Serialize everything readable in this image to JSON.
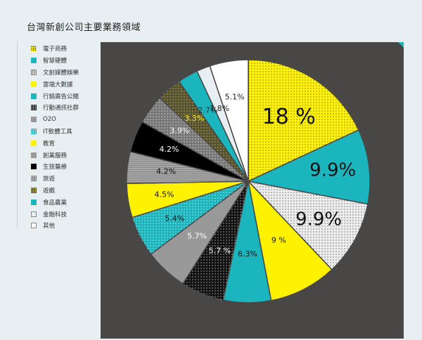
{
  "title": "台灣新創公司主要業務領域",
  "chart_data": {
    "type": "pie",
    "title": "台灣新創公司主要業務領域",
    "legend_position": "left",
    "slices": [
      {
        "name": "電子商務",
        "value": 18,
        "label": "18 %",
        "color": "#fff200",
        "pattern": "dots-dark"
      },
      {
        "name": "智慧硬體",
        "value": 9.9,
        "label": "9.9%",
        "color": "#1bb5bd",
        "pattern": "none"
      },
      {
        "name": "文創媒體娛樂",
        "value": 9.9,
        "label": "9.9%",
        "color": "#ececec",
        "pattern": "dots-dark"
      },
      {
        "name": "雲端大數據",
        "value": 9,
        "label": "9 %",
        "color": "#fff200",
        "pattern": "none"
      },
      {
        "name": "行銷廣告公關",
        "value": 6.3,
        "label": "6.3%",
        "color": "#1bb5bd",
        "pattern": "none"
      },
      {
        "name": "行動通訊社群",
        "value": 5.7,
        "label": "5.7 %",
        "color": "#111111",
        "pattern": "dots-light"
      },
      {
        "name": "O2O",
        "value": 5.7,
        "label": "5.7%",
        "color": "#999999",
        "pattern": "none"
      },
      {
        "name": "IT軟體工具",
        "value": 5.4,
        "label": "5.4%",
        "color": "#1bb5bd",
        "pattern": "dots-light"
      },
      {
        "name": "教育",
        "value": 4.5,
        "label": "4.5%",
        "color": "#fff200",
        "pattern": "none"
      },
      {
        "name": "創業服務",
        "value": 4.2,
        "label": "4.2%",
        "color": "#a5a5a5",
        "pattern": "lines"
      },
      {
        "name": "生技醫療",
        "value": 4.2,
        "label": "4.2%",
        "color": "#000000",
        "pattern": "none"
      },
      {
        "name": "旅遊",
        "value": 3.9,
        "label": "3.9%",
        "color": "#777777",
        "pattern": "dots-light"
      },
      {
        "name": "遊戲",
        "value": 3.3,
        "label": "3.3%",
        "color": "#55513a",
        "pattern": "dots-yellow"
      },
      {
        "name": "食品農業",
        "value": 2.7,
        "label": "2.7%",
        "color": "#1bb5bd",
        "pattern": "none"
      },
      {
        "name": "金融科技",
        "value": 1.8,
        "label": "1.8%",
        "color": "#e7eff2",
        "pattern": "none"
      },
      {
        "name": "其他",
        "value": 5.1,
        "label": "5.1%",
        "color": "#ffffff",
        "pattern": "none"
      }
    ]
  }
}
